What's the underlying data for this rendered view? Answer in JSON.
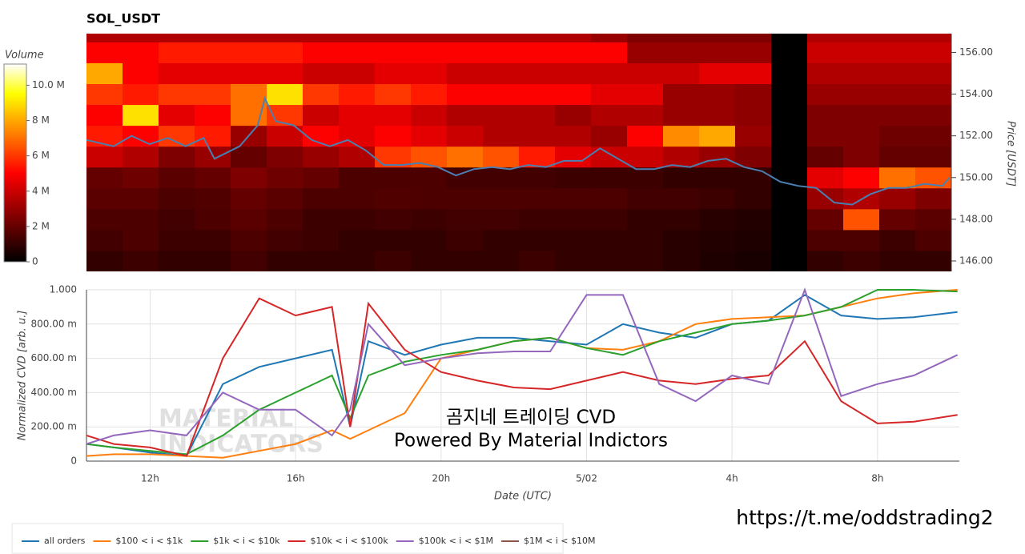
{
  "chart_data": [
    {
      "type": "heatmap",
      "title": "SOL_USDT",
      "colormap": "hot",
      "colorbar_title": "Volume",
      "zlim": [
        0,
        11.2
      ],
      "colorbar_ticks": [
        0,
        {
          "value": 2,
          "label": "2 M"
        },
        {
          "value": 4,
          "label": "4 M"
        },
        {
          "value": 6,
          "label": "6 M"
        },
        {
          "value": 8,
          "label": "8 M"
        },
        {
          "value": 10,
          "label": "10.0 M"
        }
      ],
      "ylabel": "Price [USDT]",
      "y_axis_side": "right",
      "xlim": [
        10.25,
        34.25
      ],
      "x_bins": [
        10.25,
        11.25,
        12.25,
        13.25,
        14.25,
        15.25,
        16.25,
        17.25,
        18.25,
        19.25,
        20.25,
        21.25,
        22.25,
        23.25,
        24.25,
        25.25,
        26.25,
        27.25,
        28.25,
        29.25,
        30.25,
        31.25,
        32.25,
        33.25,
        34.25
      ],
      "ylim": [
        145.5,
        156.9
      ],
      "y_bins": [
        145.5,
        146.5,
        147.5,
        148.5,
        149.5,
        150.5,
        151.5,
        152.5,
        153.5,
        154.5,
        155.5,
        156.5,
        156.9
      ],
      "yticks": [
        {
          "value": 146,
          "label": "146.00"
        },
        {
          "value": 148,
          "label": "148.00"
        },
        {
          "value": 150,
          "label": "150.00"
        },
        {
          "value": 152,
          "label": "152.00"
        },
        {
          "value": 154,
          "label": "154.00"
        },
        {
          "value": 156,
          "label": "156.00"
        }
      ],
      "values": [
        [
          1,
          1.2,
          1,
          1,
          1.3,
          1,
          1,
          1,
          1.2,
          1,
          1,
          1,
          1.2,
          1,
          1,
          1,
          0.8,
          0.6,
          0.5,
          0,
          1,
          1.2,
          1,
          1
        ],
        [
          1.3,
          1.5,
          1.2,
          1.2,
          1.5,
          1.3,
          1.2,
          1,
          1,
          1,
          1.2,
          1,
          1,
          1,
          1,
          1,
          0.8,
          0.7,
          0.6,
          0,
          1.5,
          1.5,
          1.2,
          1.5
        ],
        [
          1.5,
          1.5,
          1.3,
          1.5,
          1.8,
          1.5,
          1.2,
          1.2,
          1.3,
          1.2,
          1.3,
          1.3,
          1.2,
          1.2,
          1.2,
          1,
          1,
          0.8,
          0.7,
          0,
          2,
          6.5,
          2,
          1.8
        ],
        [
          1.8,
          1.8,
          1.5,
          1.6,
          2,
          1.8,
          1.5,
          1.5,
          1.6,
          1.5,
          1.5,
          1.5,
          1.5,
          1.5,
          1.5,
          1.3,
          1.3,
          1.2,
          1,
          0,
          3,
          3.5,
          3,
          2.5
        ],
        [
          2,
          2.2,
          1.8,
          2,
          2.5,
          2.2,
          2,
          1.5,
          1.5,
          1.5,
          1.3,
          1.3,
          1.3,
          1.2,
          1.2,
          1.2,
          1,
          1,
          1,
          0,
          4.5,
          5,
          7,
          6.5
        ],
        [
          4,
          3.5,
          2.5,
          3,
          2,
          2.5,
          3,
          3.5,
          6,
          6.5,
          7,
          6.5,
          5.5,
          4.5,
          4,
          4,
          3.5,
          3,
          2.5,
          0,
          2,
          2.5,
          2,
          2
        ],
        [
          5.5,
          5,
          6,
          5.5,
          3,
          4,
          5,
          4.5,
          5,
          4.5,
          4,
          3.5,
          3.5,
          3.5,
          3,
          5,
          7.5,
          8,
          3,
          0,
          2.5,
          2.5,
          2.2,
          2.2
        ],
        [
          5,
          9,
          4.5,
          5,
          7,
          6,
          4,
          4.5,
          4.5,
          4,
          3.5,
          3.5,
          3.5,
          3,
          3.5,
          3.5,
          3,
          3,
          2.8,
          0,
          2.5,
          2.5,
          2.5,
          2.5
        ],
        [
          6,
          5.5,
          6,
          6,
          7,
          9,
          6,
          5.5,
          6,
          5.5,
          5,
          5,
          5,
          5,
          4.5,
          4.5,
          3,
          3,
          2.8,
          0,
          3,
          3,
          3,
          3
        ],
        [
          8,
          5,
          4.5,
          4.5,
          4.5,
          4.5,
          4,
          4,
          4.5,
          4.5,
          4,
          4,
          4,
          4,
          4,
          4,
          4,
          4.5,
          4.5,
          0,
          3.5,
          3.5,
          3.5,
          3.5
        ],
        [
          5,
          5,
          5.5,
          5.5,
          5.5,
          5.5,
          5,
          5,
          5,
          5,
          5,
          5,
          5,
          5,
          5,
          3,
          3,
          3,
          3,
          0,
          4,
          4,
          4,
          4
        ],
        [
          3.5,
          3.5,
          3.5,
          3.5,
          3.5,
          3.5,
          3.5,
          3.5,
          3.5,
          3.5,
          3.5,
          3.5,
          3.5,
          3.5,
          3,
          2.5,
          2.5,
          2.5,
          2.5,
          0,
          3.5,
          3.5,
          3.5,
          3.5
        ]
      ],
      "overlay": {
        "color": "#4a7fb0",
        "x": [
          10.25,
          11,
          11.5,
          12,
          12.5,
          13,
          13.5,
          13.8,
          14.5,
          15,
          15.2,
          15.5,
          16,
          16.5,
          17,
          17.5,
          18,
          18.5,
          19,
          19.5,
          20,
          20.5,
          21,
          21.5,
          22,
          22.5,
          23,
          23.5,
          24,
          24.5,
          25,
          25.5,
          26,
          26.5,
          27,
          27.5,
          28,
          28.5,
          29,
          29.5,
          30,
          30.5,
          31,
          31.5,
          32,
          32.5,
          33,
          33.5,
          34,
          34.2
        ],
        "values": [
          151.8,
          151.5,
          152,
          151.6,
          151.9,
          151.5,
          151.9,
          150.9,
          151.5,
          152.5,
          153.8,
          152.7,
          152.5,
          151.8,
          151.5,
          151.8,
          151.3,
          150.6,
          150.6,
          150.7,
          150.5,
          150.1,
          150.4,
          150.5,
          150.4,
          150.6,
          150.5,
          150.8,
          150.8,
          151.4,
          150.9,
          150.4,
          150.4,
          150.6,
          150.5,
          150.8,
          150.9,
          150.5,
          150.3,
          149.8,
          149.6,
          149.5,
          148.8,
          148.7,
          149.2,
          149.5,
          149.5,
          149.7,
          149.6,
          150.0
        ]
      }
    },
    {
      "type": "line",
      "xlabel": "Date (UTC)",
      "ylabel": "Normalized CVD [arb. u.]",
      "grid": true,
      "legend": "bottom-left",
      "xlim": [
        10.25,
        34.25
      ],
      "xticks": [
        {
          "value": 12,
          "label": "12h"
        },
        {
          "value": 16,
          "label": "16h"
        },
        {
          "value": 20,
          "label": "20h"
        },
        {
          "value": 24,
          "label": "5/02"
        },
        {
          "value": 28,
          "label": "4h"
        },
        {
          "value": 32,
          "label": "8h"
        }
      ],
      "ylim": [
        0,
        1
      ],
      "yticks": [
        0,
        {
          "value": 0.2,
          "label": "200.00 m"
        },
        {
          "value": 0.4,
          "label": "400.00 m"
        },
        {
          "value": 0.6,
          "label": "600.00 m"
        },
        {
          "value": 0.8,
          "label": "800.00 m"
        },
        {
          "value": 1,
          "label": "1.000"
        }
      ],
      "x": [
        10.25,
        11,
        12,
        13,
        14,
        15,
        16,
        17,
        17.5,
        18,
        19,
        20,
        21,
        22,
        23,
        24,
        25,
        26,
        27,
        28,
        29,
        30,
        31,
        32,
        33,
        34.2
      ],
      "series": [
        {
          "name": "all orders",
          "color": "#1f77b4",
          "values": [
            0.1,
            0.08,
            0.05,
            0.03,
            0.45,
            0.55,
            0.6,
            0.65,
            0.2,
            0.7,
            0.62,
            0.68,
            0.72,
            0.72,
            0.7,
            0.68,
            0.8,
            0.75,
            0.72,
            0.8,
            0.82,
            0.97,
            0.85,
            0.83,
            0.84,
            0.87
          ]
        },
        {
          "name": "$100 < i < $1k",
          "color": "#ff7f0e",
          "values": [
            0.03,
            0.04,
            0.04,
            0.03,
            0.02,
            0.06,
            0.1,
            0.18,
            0.13,
            0.18,
            0.28,
            0.6,
            0.65,
            0.7,
            0.72,
            0.66,
            0.65,
            0.7,
            0.8,
            0.83,
            0.84,
            0.85,
            0.9,
            0.95,
            0.98,
            1.0
          ]
        },
        {
          "name": "$1k < i < $10k",
          "color": "#2ca02c",
          "values": [
            0.1,
            0.08,
            0.06,
            0.04,
            0.15,
            0.3,
            0.4,
            0.5,
            0.25,
            0.5,
            0.58,
            0.62,
            0.65,
            0.7,
            0.72,
            0.66,
            0.62,
            0.7,
            0.75,
            0.8,
            0.82,
            0.85,
            0.9,
            1.0,
            1.0,
            0.99
          ]
        },
        {
          "name": "$10k < i < $100k",
          "color": "#d62728",
          "values": [
            0.15,
            0.1,
            0.08,
            0.03,
            0.6,
            0.95,
            0.85,
            0.9,
            0.2,
            0.92,
            0.65,
            0.52,
            0.47,
            0.43,
            0.42,
            0.47,
            0.52,
            0.47,
            0.45,
            0.48,
            0.5,
            0.7,
            0.35,
            0.22,
            0.23,
            0.27
          ]
        },
        {
          "name": "$100k < i < $1M",
          "color": "#9467bd",
          "values": [
            0.1,
            0.15,
            0.18,
            0.15,
            0.4,
            0.3,
            0.3,
            0.15,
            0.3,
            0.8,
            0.56,
            0.6,
            0.63,
            0.64,
            0.64,
            0.97,
            0.97,
            0.45,
            0.35,
            0.5,
            0.45,
            1.0,
            0.38,
            0.45,
            0.5,
            0.62
          ]
        },
        {
          "name": "$1M < i < $10M",
          "color": "#8c564b",
          "values": [
            null,
            null,
            null,
            null,
            null,
            null,
            null,
            null,
            null,
            null,
            null,
            null,
            null,
            null,
            null,
            null,
            null,
            null,
            null,
            null,
            null,
            null,
            null,
            null,
            null,
            null
          ]
        }
      ],
      "watermark": [
        "MATERIAL",
        "INDICATORS"
      ],
      "annotations": [
        "곰지네 트레이딩 CVD",
        "Powered By Material Indictors"
      ]
    }
  ],
  "link": "https://t.me/oddstrading2"
}
